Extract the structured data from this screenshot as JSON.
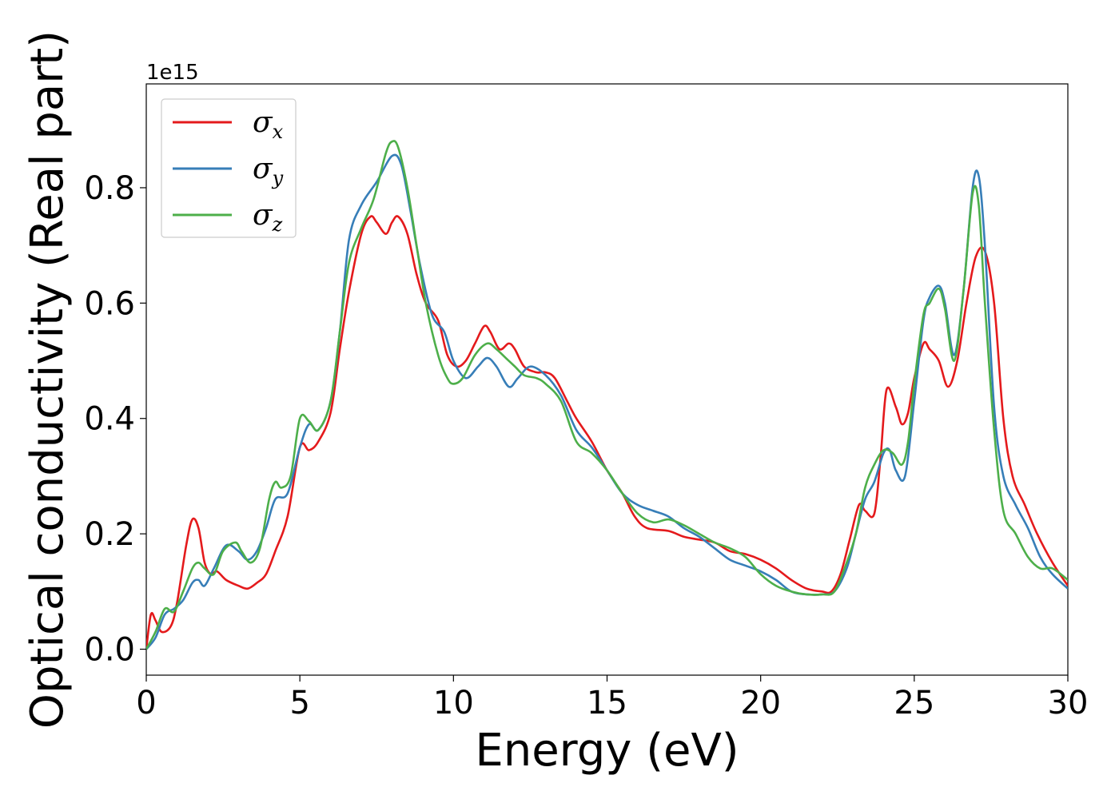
{
  "chart_data": {
    "type": "line",
    "xlabel": "Energy (eV)",
    "ylabel": "Optical conductivity (Real part)",
    "y_offset_label": "1e15",
    "xlim": [
      0,
      30
    ],
    "ylim": [
      -0.045,
      0.98
    ],
    "xticks": [
      0,
      5,
      10,
      15,
      20,
      25,
      30
    ],
    "xtick_labels": [
      "0",
      "5",
      "10",
      "15",
      "20",
      "25",
      "30"
    ],
    "yticks": [
      0.0,
      0.2,
      0.4,
      0.6,
      0.8
    ],
    "ytick_labels": [
      "0.0",
      "0.2",
      "0.4",
      "0.6",
      "0.8"
    ],
    "grid": false,
    "legend": "top-left",
    "series": [
      {
        "name": "σx",
        "legend_symbol": "σ",
        "legend_subscript": "x",
        "color": "#e41a1c",
        "x": [
          0,
          0.15,
          0.3,
          0.5,
          0.8,
          1.0,
          1.3,
          1.5,
          1.7,
          1.9,
          2.1,
          2.3,
          2.6,
          3.0,
          3.3,
          3.6,
          3.9,
          4.2,
          4.6,
          5.0,
          5.3,
          5.6,
          6.0,
          6.3,
          6.6,
          7.0,
          7.3,
          7.5,
          7.8,
          8.0,
          8.2,
          8.5,
          8.8,
          9.1,
          9.5,
          9.8,
          10.1,
          10.4,
          10.7,
          11.0,
          11.2,
          11.5,
          11.8,
          12.0,
          12.3,
          12.7,
          13.0,
          13.3,
          13.7,
          14.0,
          14.5,
          15.0,
          15.5,
          15.9,
          16.3,
          17.0,
          17.5,
          18.0,
          18.5,
          19.0,
          19.5,
          20.0,
          20.5,
          21.0,
          21.5,
          22.0,
          22.3,
          22.6,
          22.9,
          23.2,
          23.4,
          23.7,
          23.9,
          24.1,
          24.4,
          24.6,
          24.8,
          25.0,
          25.3,
          25.5,
          25.8,
          26.1,
          26.4,
          26.7,
          27.0,
          27.3,
          27.6,
          27.9,
          28.2,
          28.6,
          29.0,
          29.5,
          30.0
        ],
        "y": [
          0.0,
          0.06,
          0.05,
          0.03,
          0.04,
          0.08,
          0.18,
          0.225,
          0.21,
          0.15,
          0.13,
          0.135,
          0.12,
          0.11,
          0.105,
          0.115,
          0.13,
          0.17,
          0.23,
          0.35,
          0.345,
          0.36,
          0.41,
          0.52,
          0.62,
          0.72,
          0.75,
          0.74,
          0.72,
          0.74,
          0.75,
          0.72,
          0.65,
          0.6,
          0.57,
          0.51,
          0.49,
          0.5,
          0.53,
          0.56,
          0.55,
          0.52,
          0.53,
          0.52,
          0.49,
          0.48,
          0.48,
          0.47,
          0.43,
          0.4,
          0.36,
          0.31,
          0.27,
          0.23,
          0.21,
          0.205,
          0.195,
          0.19,
          0.185,
          0.17,
          0.165,
          0.155,
          0.14,
          0.12,
          0.105,
          0.1,
          0.1,
          0.13,
          0.19,
          0.25,
          0.24,
          0.235,
          0.33,
          0.45,
          0.42,
          0.39,
          0.41,
          0.47,
          0.53,
          0.52,
          0.5,
          0.455,
          0.5,
          0.6,
          0.68,
          0.69,
          0.6,
          0.4,
          0.3,
          0.25,
          0.2,
          0.15,
          0.11
        ]
      },
      {
        "name": "σy",
        "legend_symbol": "σ",
        "legend_subscript": "y",
        "color": "#377eb8",
        "x": [
          0,
          0.3,
          0.6,
          0.9,
          1.2,
          1.5,
          1.7,
          1.9,
          2.2,
          2.6,
          3.0,
          3.3,
          3.6,
          3.9,
          4.2,
          4.6,
          5.0,
          5.3,
          5.6,
          6.0,
          6.3,
          6.6,
          7.0,
          7.5,
          8.0,
          8.3,
          8.6,
          8.9,
          9.3,
          9.7,
          10.0,
          10.4,
          10.8,
          11.1,
          11.4,
          11.8,
          12.1,
          12.5,
          13.0,
          13.5,
          14.0,
          14.5,
          15.0,
          15.5,
          16.0,
          16.5,
          17.0,
          17.5,
          18.0,
          18.5,
          19.0,
          19.5,
          20.0,
          20.5,
          21.0,
          21.5,
          22.0,
          22.4,
          22.8,
          23.1,
          23.4,
          23.7,
          24.0,
          24.2,
          24.4,
          24.7,
          25.0,
          25.3,
          25.5,
          25.8,
          26.0,
          26.3,
          26.6,
          26.9,
          27.1,
          27.3,
          27.6,
          27.9,
          28.3,
          28.7,
          29.1,
          29.5,
          30.0
        ],
        "y": [
          0.0,
          0.02,
          0.06,
          0.07,
          0.085,
          0.115,
          0.12,
          0.11,
          0.14,
          0.18,
          0.17,
          0.155,
          0.17,
          0.21,
          0.26,
          0.27,
          0.35,
          0.39,
          0.38,
          0.43,
          0.55,
          0.71,
          0.77,
          0.81,
          0.855,
          0.84,
          0.76,
          0.67,
          0.58,
          0.55,
          0.5,
          0.47,
          0.49,
          0.505,
          0.49,
          0.455,
          0.47,
          0.49,
          0.475,
          0.44,
          0.38,
          0.35,
          0.31,
          0.27,
          0.25,
          0.24,
          0.23,
          0.21,
          0.195,
          0.175,
          0.155,
          0.145,
          0.135,
          0.12,
          0.1,
          0.095,
          0.095,
          0.1,
          0.14,
          0.2,
          0.26,
          0.29,
          0.34,
          0.345,
          0.31,
          0.3,
          0.43,
          0.57,
          0.61,
          0.63,
          0.6,
          0.51,
          0.62,
          0.8,
          0.82,
          0.7,
          0.42,
          0.3,
          0.25,
          0.21,
          0.16,
          0.13,
          0.105
        ]
      },
      {
        "name": "σz",
        "legend_symbol": "σ",
        "legend_subscript": "z",
        "color": "#4daf4a",
        "x": [
          0,
          0.3,
          0.6,
          0.9,
          1.2,
          1.5,
          1.7,
          1.9,
          2.2,
          2.5,
          2.9,
          3.1,
          3.4,
          3.7,
          4.0,
          4.2,
          4.4,
          4.7,
          5.0,
          5.3,
          5.6,
          6.0,
          6.3,
          6.6,
          7.0,
          7.4,
          7.8,
          8.0,
          8.2,
          8.5,
          8.8,
          9.1,
          9.5,
          9.8,
          10.0,
          10.3,
          10.7,
          11.1,
          11.4,
          11.7,
          12.0,
          12.3,
          12.7,
          13.0,
          13.5,
          14.0,
          14.5,
          15.0,
          15.5,
          16.0,
          16.5,
          17.0,
          17.5,
          18.0,
          18.5,
          19.0,
          19.5,
          20.0,
          20.5,
          21.0,
          21.5,
          22.0,
          22.4,
          22.8,
          23.1,
          23.4,
          23.7,
          24.0,
          24.3,
          24.6,
          24.8,
          25.0,
          25.3,
          25.5,
          25.8,
          26.0,
          26.3,
          26.6,
          26.9,
          27.1,
          27.3,
          27.6,
          27.9,
          28.3,
          28.7,
          29.1,
          29.5,
          30.0
        ],
        "y": [
          0.0,
          0.03,
          0.07,
          0.065,
          0.1,
          0.14,
          0.15,
          0.14,
          0.13,
          0.17,
          0.185,
          0.17,
          0.15,
          0.175,
          0.26,
          0.29,
          0.28,
          0.3,
          0.4,
          0.395,
          0.38,
          0.43,
          0.55,
          0.67,
          0.73,
          0.78,
          0.86,
          0.88,
          0.87,
          0.8,
          0.7,
          0.6,
          0.51,
          0.47,
          0.46,
          0.47,
          0.51,
          0.53,
          0.52,
          0.505,
          0.49,
          0.475,
          0.47,
          0.46,
          0.43,
          0.36,
          0.34,
          0.31,
          0.27,
          0.235,
          0.22,
          0.225,
          0.215,
          0.2,
          0.185,
          0.175,
          0.16,
          0.13,
          0.11,
          0.1,
          0.095,
          0.095,
          0.1,
          0.15,
          0.2,
          0.28,
          0.32,
          0.345,
          0.34,
          0.32,
          0.36,
          0.46,
          0.58,
          0.6,
          0.625,
          0.59,
          0.5,
          0.62,
          0.79,
          0.77,
          0.6,
          0.38,
          0.24,
          0.2,
          0.16,
          0.14,
          0.14,
          0.12
        ]
      }
    ]
  }
}
